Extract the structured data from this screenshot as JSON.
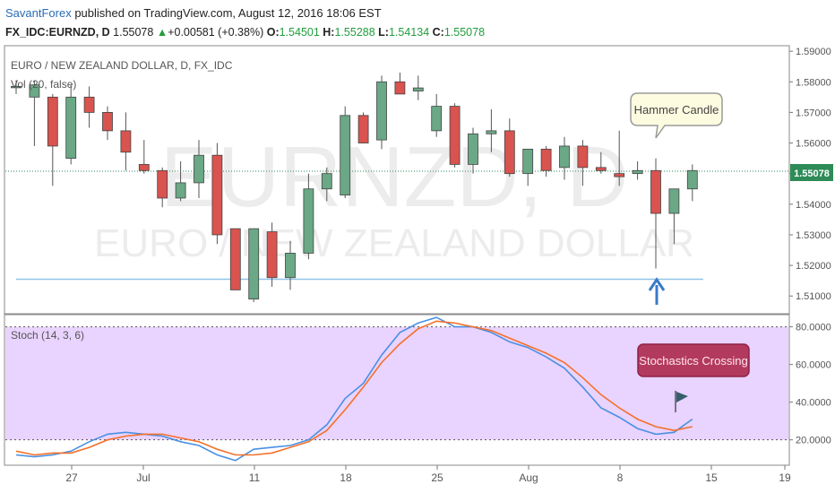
{
  "header": {
    "author": "SavantForex",
    "published_text": "published on TradingView.com, August 12, 2016 18:06 EST",
    "symbol_line": "FX_IDC:EURNZD, D",
    "last": "1.55078",
    "change": "+0.00581 (+0.38%)",
    "o_label": "O:",
    "o": "1.54501",
    "h_label": "H:",
    "h": "1.55288",
    "l_label": "L:",
    "l": "1.54134",
    "c_label": "C:",
    "c": "1.55078"
  },
  "colors": {
    "up": "#6aa886",
    "down": "#d9534f",
    "stoch_k": "#4a90e2",
    "stoch_d": "#f4702a",
    "band": "#e9d3ff",
    "callout_fill": "#b33a5f",
    "price_tag": "#2e8b57"
  },
  "chart_data": [
    {
      "type": "candlestick",
      "title": "EURO / NEW ZEALAND DOLLAR, D, FX_IDC",
      "indicator_label": "Vol (20, false)",
      "watermark_symbol": "EURNZD, D",
      "watermark_name": "EURO / NEW ZEALAND DOLLAR",
      "x_ticks": [
        "27",
        "Jul",
        "11",
        "18",
        "25",
        "Aug",
        "8",
        "15",
        "19"
      ],
      "y_ticks": [
        "1.51000",
        "1.52000",
        "1.53000",
        "1.54000",
        "1.55000",
        "1.56000",
        "1.57000",
        "1.58000",
        "1.59000"
      ],
      "ylim": [
        1.5045,
        1.5915
      ],
      "last_price_label": "1.55078",
      "support_level": 1.5155,
      "annotations": [
        "Hammer Candle"
      ],
      "candles": [
        {
          "x": 0,
          "o": 1.5785,
          "h": 1.5805,
          "l": 1.576,
          "c": 1.5785
        },
        {
          "x": 1,
          "o": 1.575,
          "h": 1.5805,
          "l": 1.559,
          "c": 1.579
        },
        {
          "x": 2,
          "o": 1.575,
          "h": 1.576,
          "l": 1.546,
          "c": 1.559
        },
        {
          "x": 3,
          "o": 1.555,
          "h": 1.579,
          "l": 1.553,
          "c": 1.575
        },
        {
          "x": 4,
          "o": 1.575,
          "h": 1.5785,
          "l": 1.565,
          "c": 1.57
        },
        {
          "x": 5,
          "o": 1.57,
          "h": 1.572,
          "l": 1.561,
          "c": 1.564
        },
        {
          "x": 6,
          "o": 1.564,
          "h": 1.57,
          "l": 1.551,
          "c": 1.557
        },
        {
          "x": 7,
          "o": 1.553,
          "h": 1.561,
          "l": 1.55,
          "c": 1.551
        },
        {
          "x": 8,
          "o": 1.551,
          "h": 1.552,
          "l": 1.539,
          "c": 1.542
        },
        {
          "x": 9,
          "o": 1.542,
          "h": 1.554,
          "l": 1.541,
          "c": 1.547
        },
        {
          "x": 10,
          "o": 1.547,
          "h": 1.561,
          "l": 1.542,
          "c": 1.556
        },
        {
          "x": 11,
          "o": 1.556,
          "h": 1.56,
          "l": 1.527,
          "c": 1.53
        },
        {
          "x": 12,
          "o": 1.532,
          "h": 1.532,
          "l": 1.512,
          "c": 1.512
        },
        {
          "x": 13,
          "o": 1.509,
          "h": 1.532,
          "l": 1.508,
          "c": 1.532
        },
        {
          "x": 14,
          "o": 1.531,
          "h": 1.534,
          "l": 1.513,
          "c": 1.516
        },
        {
          "x": 15,
          "o": 1.516,
          "h": 1.528,
          "l": 1.512,
          "c": 1.524
        },
        {
          "x": 16,
          "o": 1.524,
          "h": 1.55,
          "l": 1.522,
          "c": 1.545
        },
        {
          "x": 17,
          "o": 1.545,
          "h": 1.552,
          "l": 1.541,
          "c": 1.55
        },
        {
          "x": 18,
          "o": 1.543,
          "h": 1.572,
          "l": 1.542,
          "c": 1.569
        },
        {
          "x": 19,
          "o": 1.569,
          "h": 1.57,
          "l": 1.56,
          "c": 1.56
        },
        {
          "x": 20,
          "o": 1.561,
          "h": 1.582,
          "l": 1.558,
          "c": 1.58
        },
        {
          "x": 21,
          "o": 1.58,
          "h": 1.583,
          "l": 1.576,
          "c": 1.576
        },
        {
          "x": 22,
          "o": 1.577,
          "h": 1.582,
          "l": 1.574,
          "c": 1.578
        },
        {
          "x": 23,
          "o": 1.564,
          "h": 1.576,
          "l": 1.562,
          "c": 1.572
        },
        {
          "x": 24,
          "o": 1.572,
          "h": 1.573,
          "l": 1.552,
          "c": 1.553
        },
        {
          "x": 25,
          "o": 1.553,
          "h": 1.565,
          "l": 1.55,
          "c": 1.563
        },
        {
          "x": 26,
          "o": 1.563,
          "h": 1.571,
          "l": 1.557,
          "c": 1.564
        },
        {
          "x": 27,
          "o": 1.564,
          "h": 1.568,
          "l": 1.549,
          "c": 1.55
        },
        {
          "x": 28,
          "o": 1.55,
          "h": 1.558,
          "l": 1.546,
          "c": 1.558
        },
        {
          "x": 29,
          "o": 1.558,
          "h": 1.559,
          "l": 1.549,
          "c": 1.551
        },
        {
          "x": 30,
          "o": 1.552,
          "h": 1.562,
          "l": 1.548,
          "c": 1.559
        },
        {
          "x": 31,
          "o": 1.559,
          "h": 1.561,
          "l": 1.546,
          "c": 1.552
        },
        {
          "x": 32,
          "o": 1.552,
          "h": 1.557,
          "l": 1.55,
          "c": 1.551
        },
        {
          "x": 33,
          "o": 1.55,
          "h": 1.564,
          "l": 1.546,
          "c": 1.549
        },
        {
          "x": 34,
          "o": 1.55,
          "h": 1.554,
          "l": 1.548,
          "c": 1.551
        },
        {
          "x": 35,
          "o": 1.551,
          "h": 1.555,
          "l": 1.519,
          "c": 1.537
        },
        {
          "x": 36,
          "o": 1.537,
          "h": 1.545,
          "l": 1.527,
          "c": 1.545
        },
        {
          "x": 37,
          "o": 1.545,
          "h": 1.553,
          "l": 1.541,
          "c": 1.551
        }
      ]
    },
    {
      "type": "line",
      "title": "Stoch (14, 3, 6)",
      "y_ticks": [
        "20.0000",
        "40.0000",
        "60.0000",
        "80.0000"
      ],
      "ylim": [
        7,
        86
      ],
      "bands": [
        20,
        80
      ],
      "annotations": [
        "Stochastics Crossing"
      ],
      "series": [
        {
          "values": [
            12,
            11,
            12,
            14,
            19,
            23,
            24,
            23,
            22,
            19,
            17,
            12,
            9,
            15,
            16,
            17,
            20,
            28,
            42,
            50,
            65,
            77,
            82,
            85,
            80,
            80,
            77,
            72,
            69,
            64,
            58,
            48,
            37,
            32,
            26,
            23,
            24,
            31
          ]
        },
        {
          "values": [
            14,
            12,
            13,
            13,
            16,
            20,
            22,
            23,
            23,
            21,
            19,
            15,
            12,
            12,
            13,
            16,
            19,
            25,
            36,
            48,
            61,
            71,
            79,
            83,
            82,
            80,
            78,
            74,
            70,
            66,
            61,
            53,
            44,
            37,
            31,
            27,
            25,
            27
          ]
        }
      ]
    }
  ]
}
